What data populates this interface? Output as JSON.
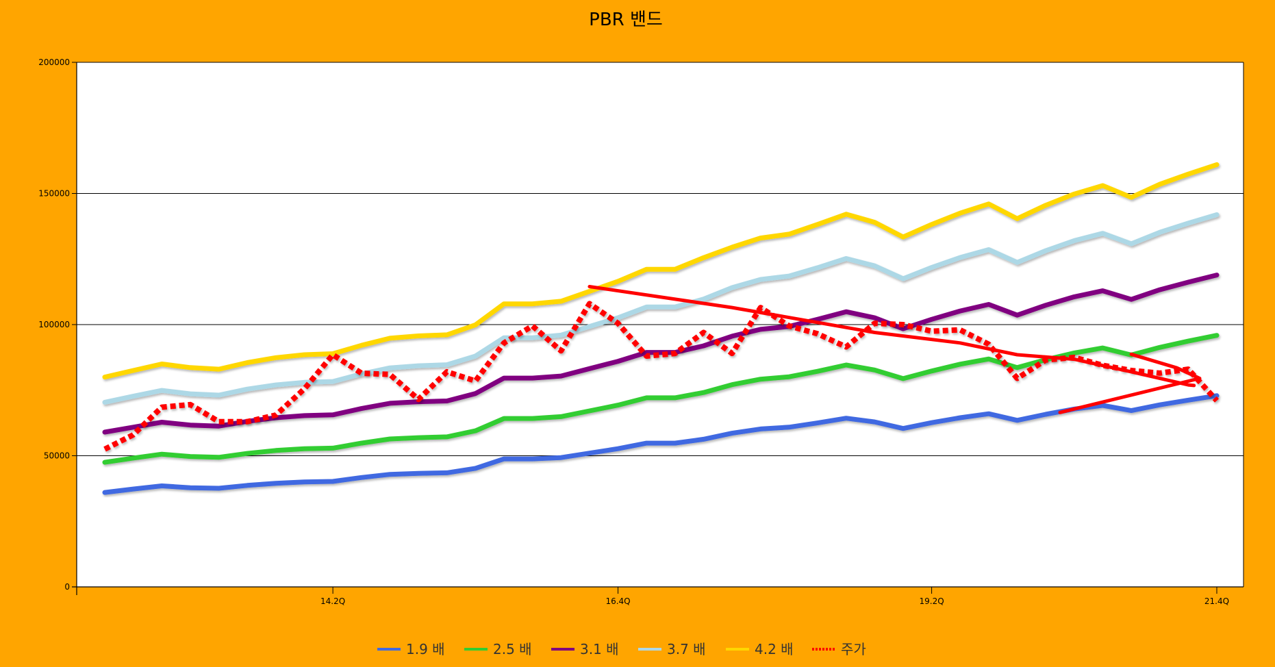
{
  "chart_data": {
    "type": "line",
    "title": "PBR 밴드",
    "xlabel": "",
    "ylabel": "",
    "ylim": [
      0,
      200000
    ],
    "yticks": [
      0,
      50000,
      100000,
      150000,
      200000
    ],
    "x_tick_labels": [
      "14.2Q",
      "16.4Q",
      "19.2Q",
      "21.4Q"
    ],
    "x_tick_index": [
      8,
      18,
      29,
      39
    ],
    "n_points": 40,
    "grid": "horizontal",
    "legend_position": "bottom",
    "series": [
      {
        "name": "1.9 배",
        "color": "#4169E1",
        "style": "solid",
        "values": [
          36000,
          37300,
          38500,
          37800,
          37600,
          38700,
          39500,
          40000,
          40200,
          41700,
          42900,
          43300,
          43500,
          45200,
          48800,
          48800,
          49300,
          51000,
          52700,
          54800,
          54800,
          56300,
          58600,
          60200,
          60900,
          62500,
          64300,
          62900,
          60400,
          62600,
          64500,
          66000,
          63500,
          65800,
          67800,
          69200,
          67200,
          69400,
          71200,
          72900
        ]
      },
      {
        "name": "2.5 배",
        "color": "#32CD32",
        "style": "solid",
        "values": [
          47500,
          49100,
          50600,
          49700,
          49400,
          50900,
          52000,
          52700,
          52900,
          54800,
          56400,
          56900,
          57200,
          59500,
          64200,
          64200,
          64900,
          67100,
          69300,
          72100,
          72100,
          74100,
          77100,
          79200,
          80100,
          82200,
          84600,
          82700,
          79400,
          82300,
          84900,
          86900,
          83600,
          86600,
          89200,
          91100,
          88400,
          91300,
          93700,
          95900
        ]
      },
      {
        "name": "3.1 배",
        "color": "#800080",
        "style": "solid",
        "values": [
          59000,
          60900,
          62800,
          61700,
          61300,
          63100,
          64500,
          65300,
          65600,
          68000,
          70000,
          70600,
          70900,
          73700,
          79600,
          79600,
          80400,
          83200,
          86000,
          89400,
          89400,
          91900,
          95600,
          98200,
          99300,
          102000,
          104900,
          102600,
          98400,
          102000,
          105200,
          107700,
          103600,
          107400,
          110600,
          112900,
          109600,
          113300,
          116200,
          118900
        ]
      },
      {
        "name": "3.7 배",
        "color": "#ADD8E6",
        "style": "solid",
        "values": [
          70400,
          72700,
          74900,
          73600,
          73100,
          75400,
          77000,
          78000,
          78300,
          81200,
          83500,
          84300,
          84700,
          88000,
          95000,
          95000,
          96000,
          99300,
          102600,
          106700,
          106700,
          109700,
          114100,
          117200,
          118500,
          121700,
          125200,
          122400,
          117500,
          121800,
          125600,
          128600,
          123700,
          128200,
          132000,
          134800,
          130800,
          135200,
          138700,
          141900
        ]
      },
      {
        "name": "4.2 배",
        "color": "#FFD700",
        "style": "solid",
        "values": [
          80000,
          82500,
          85000,
          83600,
          83000,
          85500,
          87400,
          88500,
          88900,
          92100,
          94800,
          95700,
          96100,
          99900,
          107900,
          107900,
          108900,
          112700,
          116500,
          121100,
          121100,
          125500,
          129500,
          133000,
          134500,
          138200,
          142100,
          139000,
          133400,
          138200,
          142500,
          146000,
          140400,
          145500,
          149800,
          153000,
          148500,
          153500,
          157400,
          161000
        ]
      },
      {
        "name": "주가",
        "color": "#FF0000",
        "style": "dotted",
        "values": [
          52500,
          58000,
          68500,
          69500,
          63000,
          63000,
          65500,
          75500,
          88500,
          81500,
          81000,
          71500,
          82000,
          78500,
          93000,
          99500,
          90000,
          108000,
          100500,
          88000,
          89000,
          97000,
          89000,
          106500,
          99500,
          96500,
          91500,
          100500,
          100000,
          97500,
          98000,
          92500,
          79500,
          86500,
          87500,
          84500,
          82500,
          81500,
          83000,
          71000
        ]
      }
    ],
    "annotations": [
      {
        "type": "freehand-red-arrow",
        "color": "#FF0000",
        "points": [
          [
            17.0,
            114500
          ],
          [
            22.0,
            106500
          ],
          [
            27.0,
            97000
          ],
          [
            30.0,
            93000
          ],
          [
            32.0,
            88500
          ],
          [
            34.0,
            86800
          ],
          [
            36.0,
            82000
          ],
          [
            38.0,
            77000
          ],
          [
            38.2,
            76800
          ]
        ]
      },
      {
        "type": "freehand-red-arrow",
        "color": "#FF0000",
        "points": [
          [
            33.5,
            66500
          ],
          [
            38.4,
            79500
          ],
          [
            37.6,
            83500
          ],
          [
            36.0,
            88700
          ]
        ]
      }
    ]
  }
}
